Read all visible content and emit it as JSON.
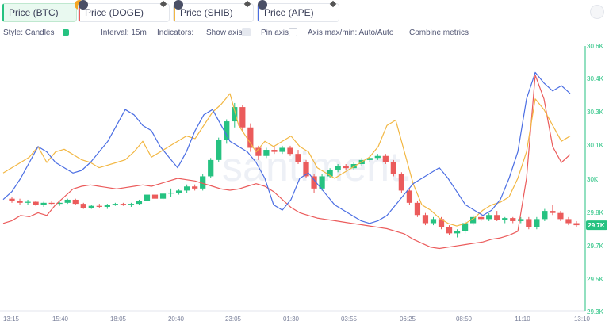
{
  "tabs": [
    {
      "label": "Price (BTC)",
      "color": "#26c281",
      "active": true,
      "indicator": "warning-badge-icon"
    },
    {
      "label": "Price (DOGE)",
      "color": "#eb5b5b",
      "active": false,
      "indicator": "metric-info-icon"
    },
    {
      "label": "Price (SHIB)",
      "color": "#f2b743",
      "active": false,
      "indicator": "metric-info-icon"
    },
    {
      "label": "Price (APE)",
      "color": "#4b6ee3",
      "active": false,
      "indicator": "metric-info-icon"
    }
  ],
  "toolbar": {
    "style_label": "Style: Candles",
    "interval_label": "Interval: 15m",
    "indicators_label": "Indicators:",
    "show_axis_label": "Show axis",
    "pin_axis_label": "Pin axis",
    "axis_minmax_label": "Axis max/min: Auto/Auto",
    "combine_label": "Combine metrics"
  },
  "chart_data": {
    "type": "line",
    "watermark": "santiment.",
    "x_ticks": [
      "13:15",
      "15:40",
      "18:05",
      "20:40",
      "23:05",
      "01:30",
      "03:55",
      "06:25",
      "08:50",
      "11:10",
      "13:10"
    ],
    "y_right": {
      "ticks": [
        "30.6K",
        "30.4K",
        "30.3K",
        "30.1K",
        "30K",
        "29.8K",
        "29.7K",
        "29.5K",
        "29.3K"
      ],
      "min": 29300,
      "max": 30600,
      "last_value_label": "29.7K"
    },
    "grid": false,
    "series": [
      {
        "name": "Price (BTC)",
        "kind": "candles",
        "color_up": "#26c281",
        "color_down": "#eb5b5b",
        "ohlc": [
          [
            29850,
            29860,
            29830,
            29840
          ],
          [
            29840,
            29850,
            29820,
            29830
          ],
          [
            29830,
            29845,
            29820,
            29835
          ],
          [
            29835,
            29840,
            29815,
            29820
          ],
          [
            29820,
            29835,
            29810,
            29830
          ],
          [
            29830,
            29840,
            29820,
            29825
          ],
          [
            29825,
            29835,
            29815,
            29830
          ],
          [
            29830,
            29850,
            29825,
            29845
          ],
          [
            29845,
            29850,
            29820,
            29825
          ],
          [
            29825,
            29830,
            29800,
            29805
          ],
          [
            29805,
            29820,
            29800,
            29815
          ],
          [
            29815,
            29825,
            29805,
            29810
          ],
          [
            29810,
            29825,
            29800,
            29820
          ],
          [
            29820,
            29830,
            29815,
            29825
          ],
          [
            29825,
            29830,
            29815,
            29820
          ],
          [
            29820,
            29830,
            29810,
            29825
          ],
          [
            29825,
            29845,
            29820,
            29840
          ],
          [
            29840,
            29880,
            29835,
            29870
          ],
          [
            29870,
            29880,
            29840,
            29850
          ],
          [
            29850,
            29880,
            29845,
            29875
          ],
          [
            29875,
            29900,
            29860,
            29880
          ],
          [
            29880,
            29895,
            29870,
            29890
          ],
          [
            29890,
            29920,
            29880,
            29910
          ],
          [
            29910,
            29920,
            29890,
            29900
          ],
          [
            29900,
            29970,
            29890,
            29960
          ],
          [
            29960,
            30050,
            29950,
            30040
          ],
          [
            30040,
            30150,
            30030,
            30140
          ],
          [
            30140,
            30240,
            30120,
            30230
          ],
          [
            30230,
            30320,
            30200,
            30300
          ],
          [
            30300,
            30310,
            30180,
            30200
          ],
          [
            30200,
            30220,
            30080,
            30100
          ],
          [
            30100,
            30110,
            30040,
            30060
          ],
          [
            30060,
            30100,
            30050,
            30090
          ],
          [
            30090,
            30110,
            30070,
            30080
          ],
          [
            30080,
            30110,
            30070,
            30100
          ],
          [
            30100,
            30110,
            30060,
            30070
          ],
          [
            30070,
            30090,
            30020,
            30030
          ],
          [
            30030,
            30040,
            29950,
            29960
          ],
          [
            29960,
            29970,
            29880,
            29900
          ],
          [
            29900,
            29970,
            29890,
            29960
          ],
          [
            29960,
            30000,
            29950,
            29990
          ],
          [
            29990,
            30020,
            29980,
            30010
          ],
          [
            30010,
            30020,
            29990,
            30000
          ],
          [
            30000,
            30030,
            29990,
            30020
          ],
          [
            30020,
            30050,
            30010,
            30040
          ],
          [
            30040,
            30060,
            30030,
            30050
          ],
          [
            30050,
            30070,
            30040,
            30060
          ],
          [
            30060,
            30070,
            30020,
            30030
          ],
          [
            30030,
            30040,
            29960,
            29970
          ],
          [
            29970,
            29980,
            29880,
            29890
          ],
          [
            29890,
            29900,
            29820,
            29830
          ],
          [
            29830,
            29840,
            29760,
            29770
          ],
          [
            29770,
            29780,
            29720,
            29730
          ],
          [
            29730,
            29760,
            29720,
            29750
          ],
          [
            29750,
            29760,
            29700,
            29710
          ],
          [
            29710,
            29720,
            29670,
            29680
          ],
          [
            29680,
            29700,
            29660,
            29690
          ],
          [
            29690,
            29740,
            29680,
            29730
          ],
          [
            29730,
            29770,
            29720,
            29760
          ],
          [
            29760,
            29780,
            29740,
            29750
          ],
          [
            29750,
            29780,
            29740,
            29770
          ],
          [
            29770,
            29790,
            29740,
            29745
          ],
          [
            29745,
            29760,
            29730,
            29755
          ],
          [
            29755,
            29760,
            29730,
            29740
          ],
          [
            29740,
            29760,
            29730,
            29750
          ],
          [
            29750,
            29760,
            29700,
            29710
          ],
          [
            29710,
            29760,
            29700,
            29750
          ],
          [
            29750,
            29800,
            29740,
            29790
          ],
          [
            29790,
            29820,
            29770,
            29780
          ],
          [
            29780,
            29790,
            29740,
            29750
          ],
          [
            29750,
            29760,
            29720,
            29730
          ],
          [
            29730,
            29740,
            29710,
            29720
          ]
        ]
      },
      {
        "name": "Price (DOGE)",
        "kind": "line",
        "color": "#eb5b5b",
        "values": [
          0.33,
          0.34,
          0.36,
          0.355,
          0.37,
          0.36,
          0.4,
          0.43,
          0.46,
          0.47,
          0.475,
          0.47,
          0.465,
          0.46,
          0.465,
          0.47,
          0.475,
          0.47,
          0.48,
          0.49,
          0.5,
          0.495,
          0.49,
          0.48,
          0.47,
          0.46,
          0.455,
          0.46,
          0.47,
          0.48,
          0.47,
          0.45,
          0.42,
          0.39,
          0.37,
          0.36,
          0.35,
          0.345,
          0.34,
          0.335,
          0.33,
          0.325,
          0.32,
          0.315,
          0.31,
          0.3,
          0.29,
          0.27,
          0.255,
          0.24,
          0.235,
          0.24,
          0.245,
          0.25,
          0.255,
          0.26,
          0.27,
          0.275,
          0.285,
          0.3,
          0.5,
          0.89,
          0.8,
          0.62,
          0.56,
          0.59
        ]
      },
      {
        "name": "Price (SHIB)",
        "kind": "line",
        "color": "#f2b743",
        "values": [
          0.52,
          0.54,
          0.56,
          0.58,
          0.62,
          0.56,
          0.6,
          0.61,
          0.59,
          0.57,
          0.56,
          0.54,
          0.55,
          0.56,
          0.57,
          0.6,
          0.64,
          0.58,
          0.6,
          0.62,
          0.64,
          0.66,
          0.65,
          0.7,
          0.75,
          0.78,
          0.82,
          0.7,
          0.65,
          0.6,
          0.64,
          0.62,
          0.64,
          0.66,
          0.62,
          0.6,
          0.54,
          0.52,
          0.5,
          0.52,
          0.54,
          0.56,
          0.58,
          0.62,
          0.7,
          0.72,
          0.6,
          0.48,
          0.4,
          0.38,
          0.35,
          0.33,
          0.32,
          0.33,
          0.35,
          0.38,
          0.4,
          0.41,
          0.43,
          0.5,
          0.6,
          0.8,
          0.76,
          0.7,
          0.64,
          0.66
        ]
      },
      {
        "name": "Price (APE)",
        "kind": "line",
        "color": "#4b6ee3",
        "values": [
          0.42,
          0.45,
          0.5,
          0.56,
          0.62,
          0.6,
          0.56,
          0.54,
          0.52,
          0.53,
          0.56,
          0.6,
          0.64,
          0.7,
          0.76,
          0.74,
          0.7,
          0.68,
          0.62,
          0.58,
          0.54,
          0.6,
          0.68,
          0.74,
          0.76,
          0.7,
          0.64,
          0.62,
          0.6,
          0.56,
          0.5,
          0.4,
          0.38,
          0.42,
          0.5,
          0.52,
          0.48,
          0.44,
          0.4,
          0.38,
          0.36,
          0.34,
          0.33,
          0.34,
          0.36,
          0.4,
          0.44,
          0.48,
          0.5,
          0.52,
          0.54,
          0.5,
          0.45,
          0.4,
          0.38,
          0.36,
          0.38,
          0.42,
          0.5,
          0.6,
          0.8,
          0.9,
          0.86,
          0.83,
          0.85,
          0.82
        ]
      }
    ]
  }
}
